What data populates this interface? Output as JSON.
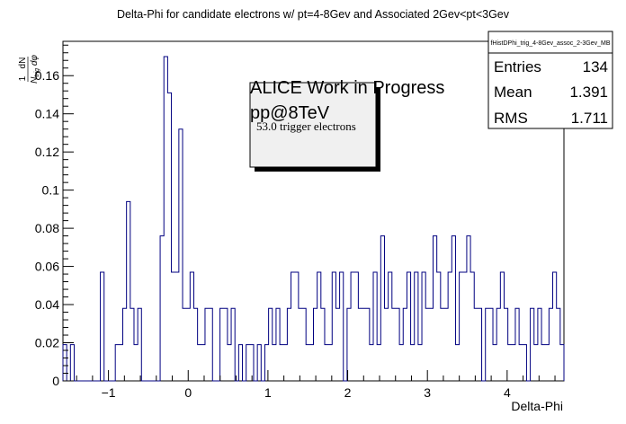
{
  "chart_data": {
    "type": "histogram",
    "title": "Delta-Phi for candidate electrons w/ pt=4-8Gev and Associated 2Gev<pt<3Gev",
    "xlabel": "Delta-Phi",
    "ylabel": "1/N_trig dN/dφ",
    "xlim": [
      -1.5708,
      4.7124
    ],
    "ylim": [
      0,
      0.178
    ],
    "x_ticks": [
      "−1",
      "0",
      "1",
      "2",
      "3",
      "4"
    ],
    "x_tick_values": [
      -1,
      0,
      1,
      2,
      3,
      4
    ],
    "y_ticks": [
      "0",
      "0.02",
      "0.04",
      "0.06",
      "0.08",
      "0.1",
      "0.12",
      "0.14",
      "0.16"
    ],
    "y_tick_values": [
      0,
      0.02,
      0.04,
      0.06,
      0.08,
      0.1,
      0.12,
      0.14,
      0.16
    ],
    "bin_width": 0.0785,
    "values": [
      0.019,
      0,
      0.019,
      0,
      0,
      0,
      0,
      0,
      0,
      0,
      0.057,
      0,
      0,
      0,
      0.019,
      0.019,
      0.038,
      0.094,
      0.038,
      0.019,
      0.038,
      0,
      0,
      0,
      0,
      0,
      0.076,
      0.17,
      0.151,
      0.057,
      0.057,
      0.132,
      0.038,
      0.038,
      0.057,
      0.038,
      0.019,
      0.019,
      0.038,
      0.038,
      0,
      0,
      0.038,
      0.038,
      0.019,
      0.038,
      0,
      0.019,
      0,
      0.019,
      0.019,
      0,
      0.019,
      0,
      0.019,
      0.038,
      0.019,
      0.038,
      0.019,
      0.019,
      0.038,
      0.057,
      0.057,
      0.038,
      0.038,
      0.019,
      0.019,
      0.038,
      0.057,
      0.038,
      0.019,
      0.019,
      0.057,
      0.038,
      0.057,
      0,
      0.038,
      0.057,
      0.057,
      0.038,
      0.038,
      0.038,
      0.019,
      0.057,
      0.019,
      0.076,
      0.038,
      0.057,
      0.038,
      0.038,
      0.019,
      0.038,
      0.057,
      0.019,
      0.057,
      0.019,
      0.057,
      0.038,
      0.038,
      0.076,
      0.057,
      0.038,
      0.038,
      0.057,
      0.076,
      0.019,
      0.057,
      0.057,
      0.076,
      0.057,
      0.038,
      0.038,
      0,
      0.038,
      0.038,
      0.019,
      0.038,
      0.057,
      0.038,
      0.019,
      0.019,
      0.038,
      0.019,
      0.019,
      0,
      0.038,
      0.019,
      0.038,
      0.019,
      0.019,
      0.038,
      0.057,
      0.038,
      0.019
    ],
    "line_color": "#000080"
  },
  "stats": {
    "name": "fHistDPhi_trig_4-8Gev_assoc_2-3Gev_MB",
    "entries_label": "Entries",
    "entries_value": "134",
    "mean_label": "Mean",
    "mean_value": "1.391",
    "rms_label": "RMS",
    "rms_value": "1.711"
  },
  "annotation": {
    "line1": "ALICE Work in Progress",
    "line2": "pp@8TeV",
    "line3": "53.0 trigger electrons"
  }
}
